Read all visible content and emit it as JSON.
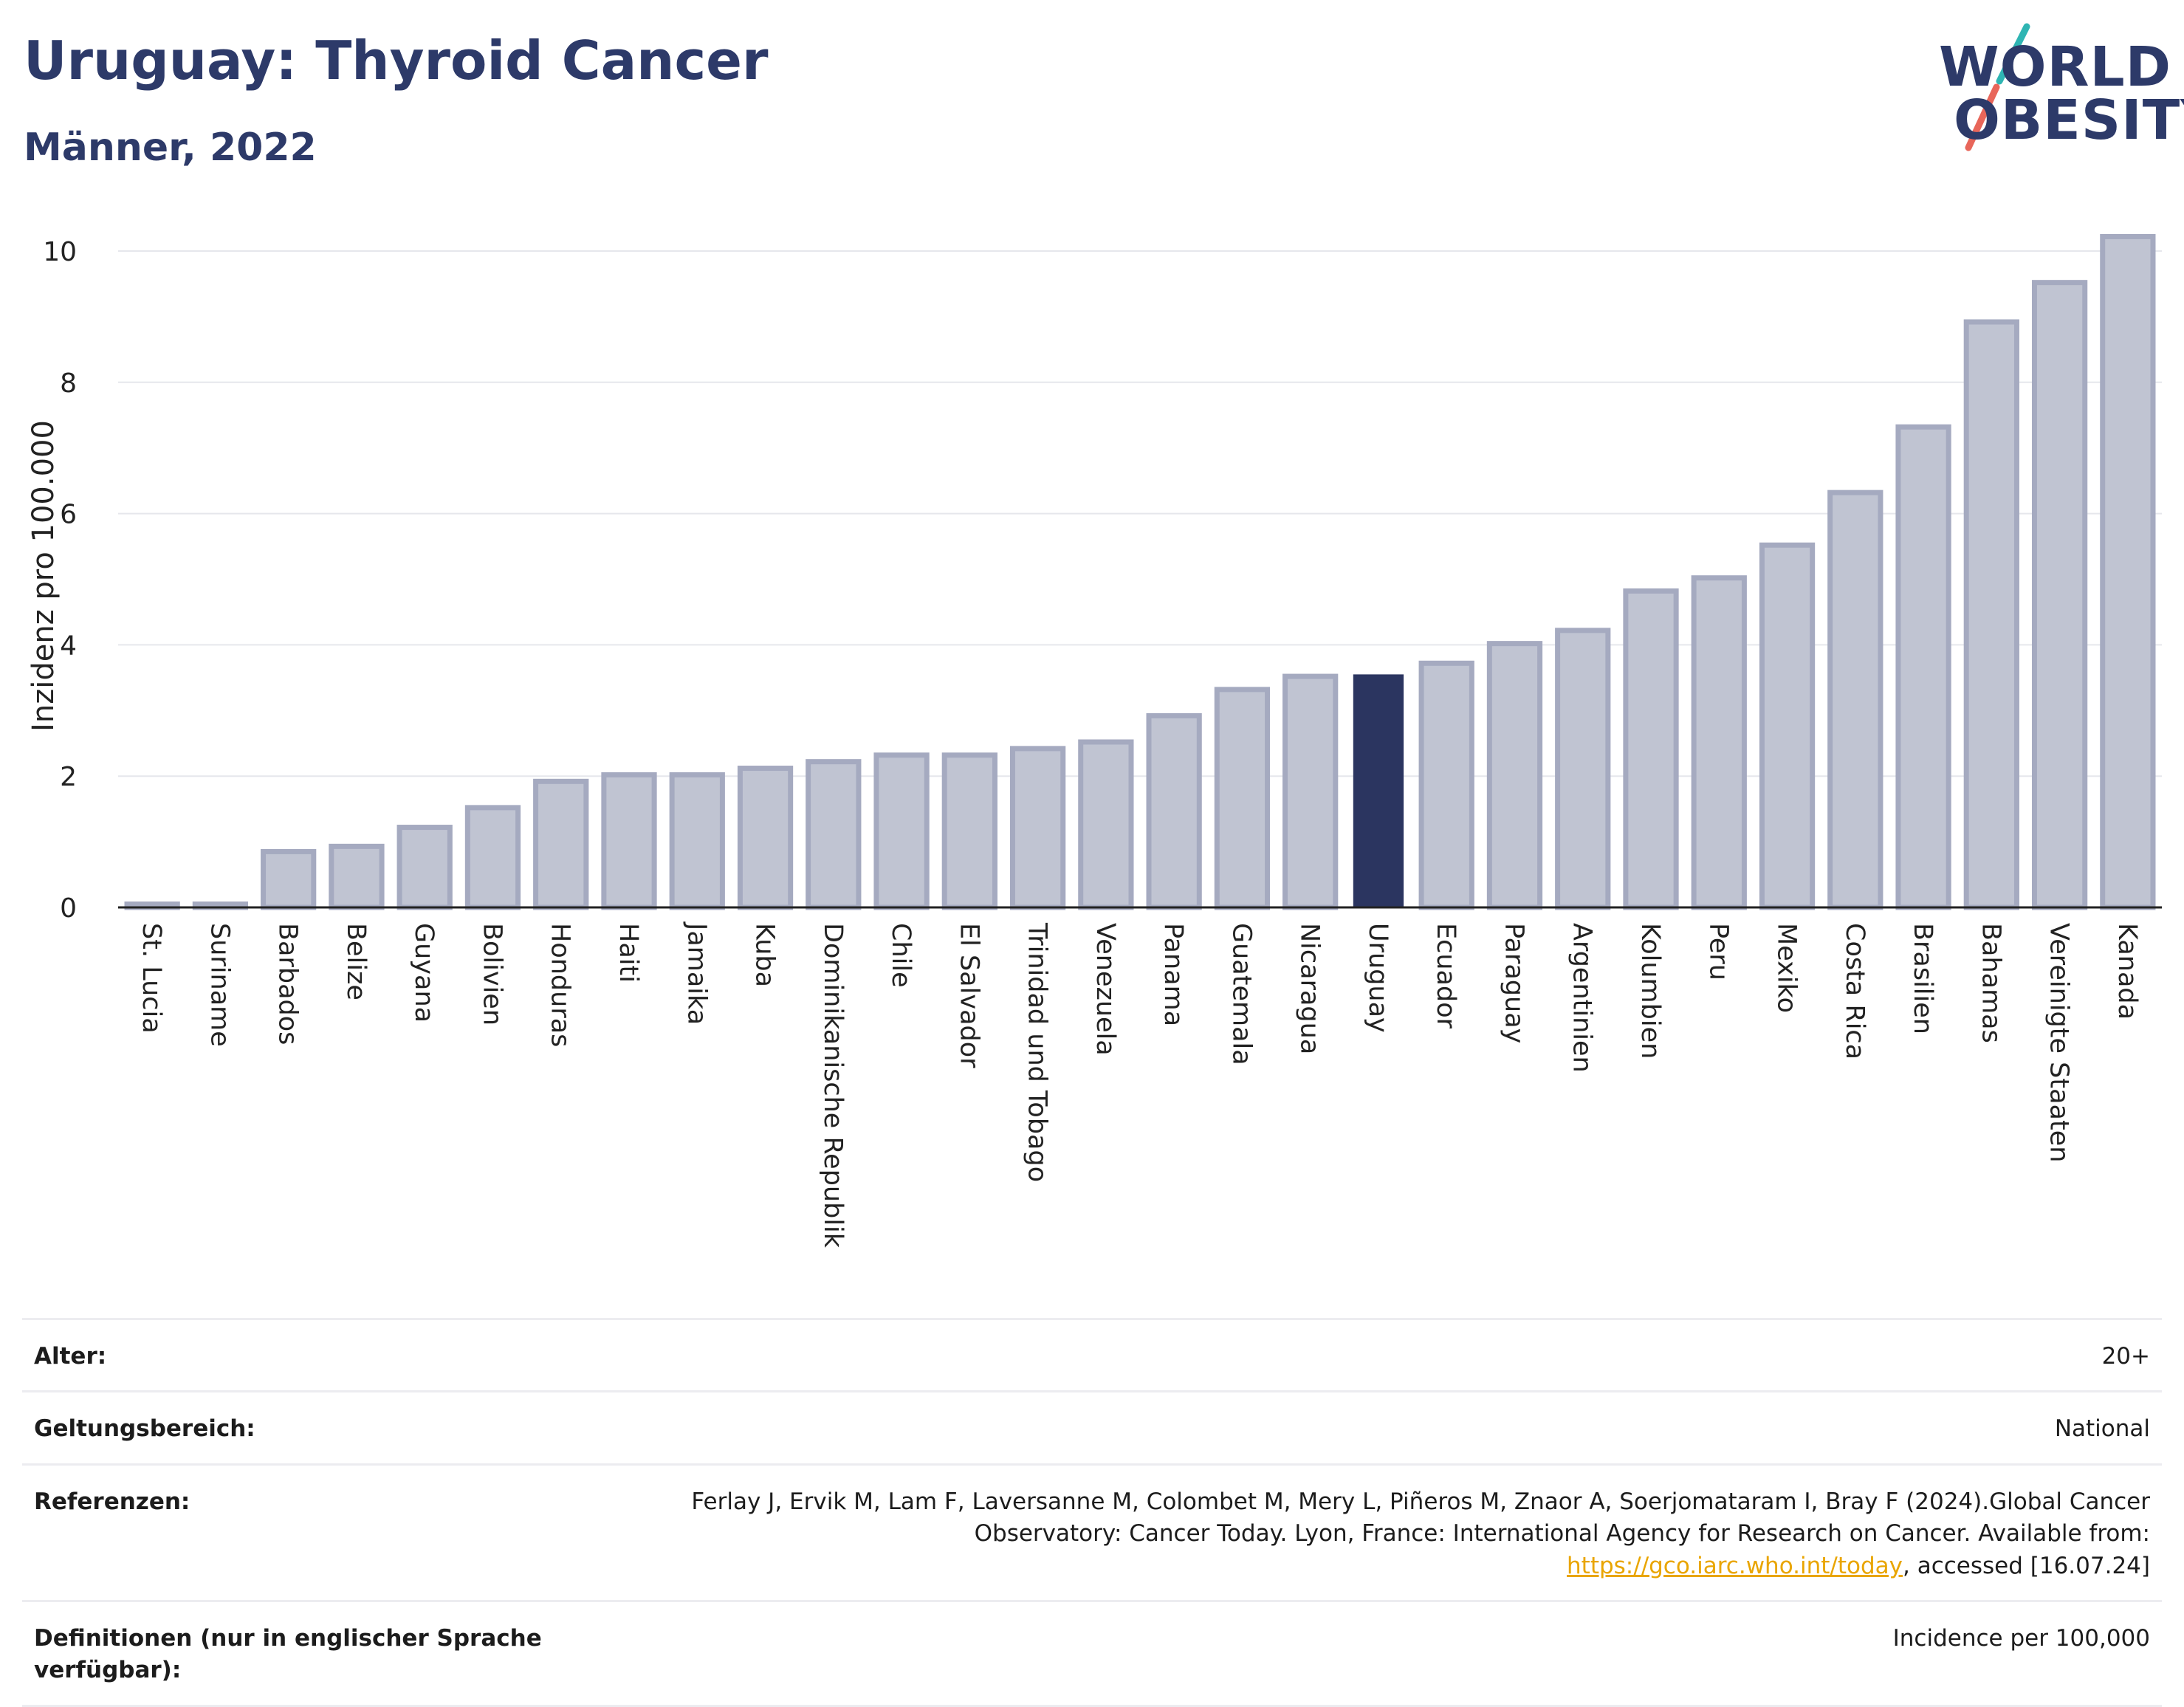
{
  "header": {
    "title": "Uruguay: Thyroid Cancer",
    "subtitle": "Männer, 2022"
  },
  "logo": {
    "line1": "WORLD",
    "line2": "OBESITY",
    "slash_colors": [
      "#2fb5b3",
      "#e8665a"
    ]
  },
  "colors": {
    "bar_default": "#c0c4d2",
    "bar_border": "#a5aac0",
    "bar_highlight": "#2b3560",
    "grid": "#e6e7ec",
    "axis": "#222222"
  },
  "chart_data": {
    "type": "bar",
    "ylabel": "Inzidenz pro 100.000",
    "xlabel": "",
    "ylim": [
      0,
      10.5
    ],
    "yticks": [
      0,
      2,
      4,
      6,
      8,
      10
    ],
    "grid": true,
    "highlight": "Uruguay",
    "categories": [
      "St. Lucia",
      "Suriname",
      "Barbados",
      "Belize",
      "Guyana",
      "Bolivien",
      "Honduras",
      "Haiti",
      "Jamaika",
      "Kuba",
      "Dominikanische Republik",
      "Chile",
      "El Salvador",
      "Trinidad und Tobago",
      "Venezuela",
      "Panama",
      "Guatemala",
      "Nicaragua",
      "Uruguay",
      "Ecuador",
      "Paraguay",
      "Argentinien",
      "Kolumbien",
      "Peru",
      "Mexiko",
      "Costa Rica",
      "Brasilien",
      "Bahamas",
      "Vereinigte Staaten",
      "Kanada"
    ],
    "values": [
      0.05,
      0.05,
      0.85,
      0.93,
      1.22,
      1.52,
      1.92,
      2.02,
      2.02,
      2.12,
      2.22,
      2.32,
      2.32,
      2.42,
      2.52,
      2.92,
      3.32,
      3.52,
      3.55,
      3.72,
      4.02,
      4.22,
      4.82,
      5.02,
      5.52,
      6.32,
      7.32,
      8.92,
      9.52,
      10.22
    ]
  },
  "meta": [
    {
      "label": "Alter:",
      "value": "20+"
    },
    {
      "label": "Geltungsbereich:",
      "value": "National"
    },
    {
      "label": "Referenzen:",
      "value_pre": "Ferlay J, Ervik M, Lam F, Laversanne M, Colombet M, Mery L, Piñeros M, Znaor A, Soerjomataram I, Bray F (2024).Global Cancer Observatory: Cancer Today. Lyon, France: International Agency for Research on Cancer. Available from: ",
      "link": "https://gco.iarc.who.int/today",
      "value_post": ", accessed [16.07.24]"
    },
    {
      "label": "Definitionen (nur in englischer Sprache verfügbar):",
      "value": "Incidence per 100,000"
    }
  ]
}
